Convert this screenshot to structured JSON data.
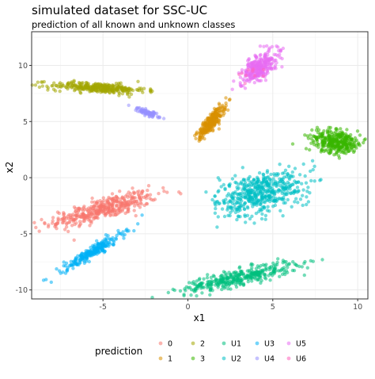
{
  "chart_data": {
    "type": "scatter",
    "title": "simulated dataset for SSC-UC",
    "subtitle": "prediction of all known and unknown classes",
    "xlabel": "x1",
    "ylabel": "x2",
    "xlim": [
      -9.2,
      10.6
    ],
    "ylim": [
      -10.8,
      13.0
    ],
    "x_ticks": [
      -5,
      0,
      5,
      10
    ],
    "y_ticks": [
      -10,
      -5,
      0,
      5,
      10
    ],
    "grid": true,
    "point_alpha": 0.55,
    "legend": {
      "title": "prediction",
      "position": "bottom",
      "entries": [
        {
          "label": "0",
          "color": "#F8766D"
        },
        {
          "label": "1",
          "color": "#D89000"
        },
        {
          "label": "2",
          "color": "#A3A500"
        },
        {
          "label": "3",
          "color": "#39B600"
        },
        {
          "label": "U1",
          "color": "#00BF7D"
        },
        {
          "label": "U2",
          "color": "#00BFC4"
        },
        {
          "label": "U3",
          "color": "#00B0F6"
        },
        {
          "label": "U4",
          "color": "#9590FF"
        },
        {
          "label": "U5",
          "color": "#E76BF3"
        },
        {
          "label": "U6",
          "color": "#FF62BC"
        }
      ]
    },
    "series": [
      {
        "name": "0",
        "color": "#F8766D",
        "center": [
          -5.0,
          -2.8
        ],
        "major_axis": [
          1,
          0.42
        ],
        "spread": [
          1.7,
          0.45
        ],
        "n": 420
      },
      {
        "name": "1",
        "color": "#D89000",
        "center": [
          1.4,
          5.0
        ],
        "major_axis": [
          1,
          1.9
        ],
        "spread": [
          0.75,
          0.18
        ],
        "n": 260
      },
      {
        "name": "2",
        "color": "#A3A500",
        "center": [
          -5.3,
          8.0
        ],
        "major_axis": [
          1,
          -0.08
        ],
        "spread": [
          1.4,
          0.22
        ],
        "n": 320
      },
      {
        "name": "3",
        "color": "#39B600",
        "center": [
          8.8,
          3.2
        ],
        "major_axis": [
          1,
          -0.35
        ],
        "spread": [
          0.75,
          0.5
        ],
        "n": 340
      },
      {
        "name": "U1",
        "color": "#00BF7D",
        "center": [
          3.0,
          -8.9
        ],
        "major_axis": [
          1,
          0.33
        ],
        "spread": [
          1.8,
          0.35
        ],
        "n": 380
      },
      {
        "name": "U2",
        "color": "#00BFC4",
        "center": [
          4.3,
          -1.3
        ],
        "major_axis": [
          1,
          0.55
        ],
        "spread": [
          1.4,
          0.85
        ],
        "n": 520
      },
      {
        "name": "U3",
        "color": "#00B0F6",
        "center": [
          -5.6,
          -6.6
        ],
        "major_axis": [
          1,
          0.92
        ],
        "spread": [
          1.2,
          0.2
        ],
        "n": 250
      },
      {
        "name": "U4",
        "color": "#9590FF",
        "center": [
          -2.4,
          5.8
        ],
        "major_axis": [
          1,
          -0.65
        ],
        "spread": [
          0.5,
          0.12
        ],
        "n": 80
      },
      {
        "name": "U5",
        "color": "#E76BF3",
        "center": [
          4.2,
          9.8
        ],
        "major_axis": [
          1,
          1.55
        ],
        "spread": [
          0.9,
          0.35
        ],
        "n": 300
      },
      {
        "name": "U6",
        "color": "#FF62BC",
        "center": [
          3.8,
          9.6
        ],
        "major_axis": [
          1,
          1.5
        ],
        "spread": [
          0.5,
          0.3
        ],
        "n": 10
      }
    ]
  }
}
